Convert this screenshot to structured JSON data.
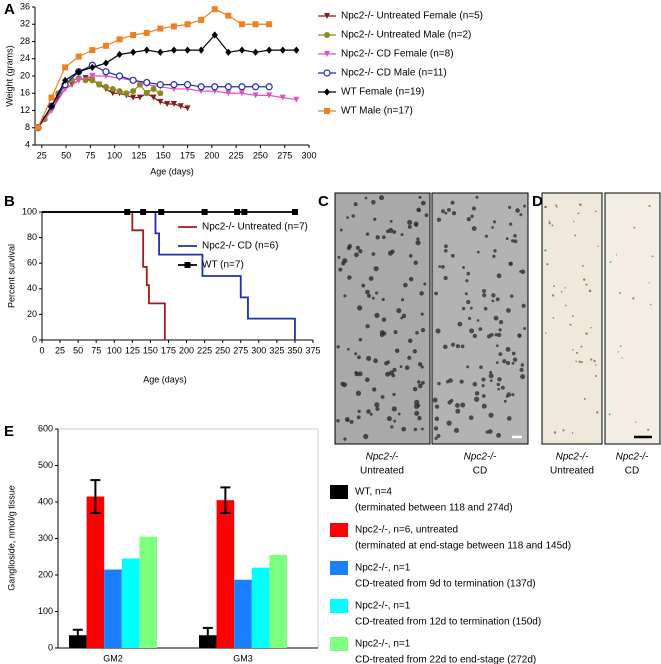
{
  "panel_labels": [
    "A",
    "B",
    "C",
    "D",
    "E"
  ],
  "micrographs": [
    {
      "captions": [
        [
          "Npc2-/-",
          "Untreated"
        ],
        [
          "Npc2-/-",
          "CD"
        ]
      ]
    },
    {
      "captions": [
        [
          "Npc2-/-",
          "Untreated"
        ],
        [
          "Npc2-/-",
          "CD"
        ]
      ]
    }
  ],
  "chart_data": [
    {
      "type": "line",
      "xlabel": "Age (days)",
      "ylabel": "Weight (grams)",
      "xlim": [
        18,
        300
      ],
      "xticks": [
        25,
        50,
        75,
        100,
        125,
        150,
        175,
        200,
        225,
        250,
        275,
        300
      ],
      "ylim": [
        4,
        36
      ],
      "yticks": [
        4,
        8,
        12,
        16,
        20,
        24,
        28,
        32,
        36
      ],
      "series": [
        {
          "name": "Npc2-/- Untreated Female (n=5)",
          "color": "#8b1a1a",
          "marker": "triangle-down",
          "x": [
            21,
            28,
            35,
            42,
            49,
            56,
            63,
            70,
            77,
            84,
            91,
            98,
            105,
            112,
            119,
            126,
            133,
            140,
            147,
            154,
            161,
            168,
            175
          ],
          "values": [
            8,
            10,
            12,
            15,
            17,
            18,
            19,
            19.5,
            19,
            18,
            17,
            16,
            16,
            15.5,
            15,
            15,
            16,
            15,
            14,
            13.5,
            13.5,
            13,
            12.5
          ]
        },
        {
          "name": "Npc2-/- Untreated Male (n=2)",
          "color": "#8a8a1c",
          "marker": "circle",
          "x": [
            21,
            28,
            35,
            42,
            49,
            56,
            63,
            70,
            77,
            84,
            91,
            98,
            105,
            112,
            119,
            126,
            133,
            140,
            147
          ],
          "values": [
            8,
            10,
            13,
            16,
            18,
            19,
            19.5,
            19,
            19,
            18,
            17.5,
            17,
            16.5,
            16,
            16.5,
            18,
            16,
            17,
            16
          ]
        },
        {
          "name": "Npc2-/- CD Female (n=8)",
          "color": "#e64fc0",
          "marker": "triangle-down",
          "x": [
            21,
            35,
            49,
            63,
            77,
            91,
            105,
            119,
            133,
            147,
            161,
            175,
            189,
            203,
            217,
            231,
            245,
            259,
            273,
            287
          ],
          "values": [
            8,
            12,
            17,
            19,
            20,
            20,
            19.5,
            19,
            18,
            17.5,
            17,
            17,
            16.5,
            16.5,
            16,
            16,
            15.5,
            15.5,
            15,
            14.5
          ]
        },
        {
          "name": "Npc2-/- CD Male (n=11)",
          "color": "#1c2fb8",
          "marker": "circle-open",
          "x": [
            21,
            35,
            49,
            63,
            77,
            91,
            105,
            119,
            133,
            147,
            161,
            175,
            189,
            203,
            217,
            231,
            245,
            259
          ],
          "values": [
            8,
            13,
            18,
            21,
            22.5,
            21,
            20,
            19,
            18.5,
            18,
            18,
            18,
            17.5,
            17.5,
            17.5,
            17.5,
            17.5,
            17.5
          ]
        },
        {
          "name": "WT Female (n=19)",
          "color": "#000000",
          "marker": "diamond",
          "x": [
            21,
            35,
            49,
            63,
            77,
            91,
            105,
            119,
            133,
            147,
            161,
            175,
            189,
            203,
            217,
            231,
            245,
            259,
            273,
            287
          ],
          "values": [
            8,
            13,
            19,
            21,
            22,
            23,
            25,
            25.5,
            26,
            25.5,
            26,
            26,
            26,
            29.5,
            25.5,
            26,
            25.5,
            26,
            26,
            26
          ]
        },
        {
          "name": "WT Male (n=17)",
          "color": "#f07f1f",
          "marker": "square",
          "x": [
            21,
            35,
            49,
            63,
            77,
            91,
            105,
            119,
            133,
            147,
            161,
            175,
            189,
            203,
            217,
            231,
            245,
            259
          ],
          "values": [
            8,
            15,
            22,
            24.5,
            26,
            27,
            28.5,
            29.5,
            30,
            31,
            31.5,
            32,
            33,
            35.5,
            34,
            32,
            32,
            32
          ]
        }
      ]
    },
    {
      "type": "step",
      "xlabel": "Age (days)",
      "ylabel": "Percent survival",
      "xlim": [
        0,
        375
      ],
      "xticks": [
        0,
        25,
        50,
        75,
        100,
        125,
        150,
        175,
        200,
        225,
        250,
        275,
        300,
        325,
        350,
        375
      ],
      "ylim": [
        0,
        100
      ],
      "yticks": [
        0,
        20,
        40,
        60,
        80,
        100
      ],
      "series": [
        {
          "name": "Npc2-/- Untreated (n=7)",
          "color": "#a01c1c",
          "markers": false,
          "x": [
            0,
            125,
            140,
            145,
            148,
            170
          ],
          "values": [
            100,
            85.7,
            57.1,
            42.9,
            28.6,
            0
          ]
        },
        {
          "name": "Npc2-/- CD (n=6)",
          "color": "#1c2fb0",
          "markers": false,
          "x": [
            0,
            157,
            162,
            222,
            275,
            285,
            350
          ],
          "values": [
            100,
            83.3,
            66.7,
            50,
            33.3,
            16.7,
            0
          ]
        },
        {
          "name": "WT (n=7)",
          "color": "#000000",
          "markers": true,
          "x": [
            118,
            140,
            165,
            225,
            270,
            280,
            350
          ],
          "values": [
            100,
            100,
            100,
            100,
            100,
            100,
            100
          ]
        }
      ]
    },
    {
      "type": "bar",
      "ylabel": "Ganglioside, nmol/g tissue",
      "categories": [
        "GM2",
        "GM3"
      ],
      "ylim": [
        0,
        600
      ],
      "yticks": [
        0,
        100,
        200,
        300,
        400,
        500,
        600
      ],
      "series": [
        {
          "name": "WT, n=4",
          "description": "(terminated between 118 and 274d)",
          "color": "#000000",
          "values": [
            35,
            35
          ],
          "errors": [
            15,
            20
          ]
        },
        {
          "name": "Npc2-/-, n=6, untreated",
          "description": "(terminated at end-stage between 118 and 145d)",
          "color": "#ff0000",
          "values": [
            415,
            405
          ],
          "errors": [
            45,
            35
          ]
        },
        {
          "name": "Npc2-/-, n=1",
          "description": "CD-treated from 9d to termination (137d)",
          "color": "#1a7fff",
          "values": [
            215,
            187
          ]
        },
        {
          "name": "Npc2-/-, n=1",
          "description": "CD-treated from 12d to termination (150d)",
          "color": "#00ffff",
          "values": [
            245,
            220
          ]
        },
        {
          "name": "Npc2-/-, n=1",
          "description": "CD-treated from 22d to end-stage (272d)",
          "color": "#7fff7f",
          "values": [
            305,
            255
          ]
        }
      ]
    }
  ]
}
